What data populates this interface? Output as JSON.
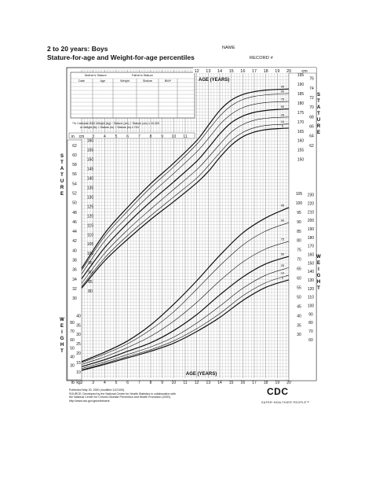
{
  "page": {
    "title_line1": "2 to 20 years: Boys",
    "title_line2": "Stature-for-age and Weight-for-age percentiles",
    "name_label": "NAME",
    "record_label": "RECORD #",
    "footer": [
      "Published May 30, 2000 (modified 11/21/00).",
      "SOURCE: Developed by the National Center for Health Statistics in collaboration with",
      "the National Center for Chronic Disease Prevention and Health Promotion (2000).",
      "http://www.cdc.gov/growthcharts"
    ],
    "logo_text": "CDC",
    "tagline": "SAFER·HEALTHIER·PEOPLE™"
  },
  "form": {
    "columns_top": [
      "Mother's Stature",
      "Father's Stature"
    ],
    "columns": [
      "Date",
      "Age",
      "Weight",
      "Stature",
      "BMI*"
    ],
    "bmi_note_1": "*To Calculate BMI: Weight (kg) ÷ Stature (cm) ÷ Stature (cm) x 10,000",
    "bmi_note_2": "or Weight (lb) ÷ Stature (in) ÷ Stature (in) x 703"
  },
  "chart_data": {
    "type": "line",
    "xlabel": "AGE (YEARS)",
    "x_ticks_top": [
      12,
      13,
      14,
      15,
      16,
      17,
      18,
      19,
      20
    ],
    "x_ticks_bottom": [
      2,
      3,
      4,
      5,
      6,
      7,
      8,
      9,
      10,
      11,
      12,
      13,
      14,
      15,
      16,
      17,
      18,
      19,
      20
    ],
    "x_ticks_inner": [
      3,
      4,
      5,
      6,
      7,
      8,
      9,
      10,
      11
    ],
    "xlim": [
      2,
      20
    ],
    "stature": {
      "label": "STATURE",
      "cm_label": "cm",
      "in_label": "in",
      "cm_ticks": [
        80,
        85,
        90,
        95,
        100,
        105,
        110,
        115,
        120,
        125,
        130,
        135,
        140,
        145,
        150,
        155,
        160,
        165,
        170,
        175,
        180,
        185,
        190
      ],
      "in_ticks_left": [
        30,
        32,
        34,
        36,
        38,
        40,
        42,
        44,
        46,
        48,
        50,
        52,
        54,
        56,
        58,
        60,
        62
      ],
      "in_ticks_right": [
        62,
        64,
        66,
        68,
        70,
        72,
        74,
        76
      ],
      "cm_ticks_right": [
        150,
        155,
        160,
        165,
        170,
        175,
        180,
        185,
        190,
        195
      ],
      "cm_ticks_left_top": [
        150,
        155,
        160
      ],
      "ylim_cm": [
        76,
        197
      ],
      "percentile_labels": [
        "5",
        "10",
        "25",
        "50",
        "75",
        "90",
        "95"
      ],
      "age": [
        2,
        4,
        6,
        8,
        10,
        12,
        13,
        14,
        15,
        16,
        17,
        18,
        19,
        20
      ],
      "series": [
        {
          "name": "95",
          "values": [
            92.0,
            110.6,
            124.5,
            137.0,
            148.0,
            160.0,
            168.0,
            176.0,
            181.5,
            184.5,
            186.0,
            186.8,
            187.2,
            187.4
          ]
        },
        {
          "name": "90",
          "values": [
            91.0,
            109.0,
            122.5,
            135.0,
            146.0,
            158.0,
            165.5,
            173.0,
            178.5,
            181.8,
            183.5,
            184.3,
            184.7,
            185.0
          ]
        },
        {
          "name": "75",
          "values": [
            89.0,
            106.5,
            119.5,
            131.5,
            142.5,
            154.0,
            161.0,
            168.5,
            174.0,
            177.5,
            179.3,
            180.2,
            180.6,
            180.8
          ]
        },
        {
          "name": "50",
          "values": [
            86.5,
            103.0,
            116.0,
            127.5,
            138.0,
            149.0,
            156.0,
            163.5,
            169.5,
            173.0,
            175.0,
            176.0,
            176.5,
            176.8
          ]
        },
        {
          "name": "25",
          "values": [
            84.0,
            100.0,
            112.5,
            123.5,
            134.0,
            144.5,
            151.0,
            158.0,
            164.5,
            168.5,
            170.8,
            171.8,
            172.3,
            172.5
          ]
        },
        {
          "name": "10",
          "values": [
            82.3,
            97.5,
            109.5,
            120.0,
            130.0,
            140.0,
            146.5,
            153.5,
            160.0,
            164.3,
            166.8,
            168.0,
            168.5,
            168.8
          ]
        },
        {
          "name": "5",
          "values": [
            81.5,
            96.0,
            107.5,
            118.0,
            127.5,
            137.5,
            143.5,
            151.0,
            157.5,
            162.0,
            164.5,
            165.8,
            166.3,
            166.6
          ]
        }
      ]
    },
    "weight": {
      "label": "WEIGHT",
      "kg_label": "kg",
      "lb_label": "lb",
      "kg_ticks_left": [
        10,
        15,
        20,
        25,
        30,
        35,
        40
      ],
      "lb_ticks_left": [
        30,
        40,
        50,
        60,
        70,
        80
      ],
      "kg_ticks_right": [
        30,
        35,
        40,
        45,
        50,
        55,
        60,
        65,
        70,
        75,
        80,
        85,
        90,
        95,
        100,
        105
      ],
      "lb_ticks_right": [
        60,
        70,
        80,
        90,
        100,
        110,
        120,
        130,
        140,
        150,
        160,
        170,
        180,
        190,
        200,
        210,
        220,
        230
      ],
      "ylim_kg": [
        8,
        107
      ],
      "percentile_labels": [
        "5",
        "10",
        "25",
        "50",
        "75",
        "90",
        "95"
      ],
      "age": [
        2,
        4,
        6,
        8,
        10,
        12,
        14,
        16,
        18,
        20
      ],
      "series": [
        {
          "name": "95",
          "values": [
            15.5,
            20.5,
            26.5,
            35.0,
            46.0,
            58.5,
            72.0,
            84.0,
            92.0,
            97.5
          ]
        },
        {
          "name": "90",
          "values": [
            15.0,
            19.5,
            25.0,
            32.5,
            42.0,
            54.0,
            66.5,
            77.5,
            85.0,
            89.5
          ]
        },
        {
          "name": "75",
          "values": [
            14.0,
            18.0,
            23.0,
            29.0,
            37.0,
            47.0,
            58.5,
            68.5,
            75.5,
            79.5
          ]
        },
        {
          "name": "50",
          "values": [
            12.8,
            16.5,
            21.0,
            25.5,
            32.0,
            40.5,
            51.0,
            60.5,
            67.5,
            71.5
          ]
        },
        {
          "name": "25",
          "values": [
            11.8,
            15.3,
            19.3,
            23.3,
            28.5,
            36.0,
            45.0,
            54.5,
            61.5,
            65.5
          ]
        },
        {
          "name": "10",
          "values": [
            11.1,
            14.5,
            18.2,
            21.8,
            26.5,
            33.0,
            41.0,
            50.5,
            57.5,
            61.5
          ]
        },
        {
          "name": "5",
          "values": [
            10.8,
            14.0,
            17.5,
            21.0,
            25.3,
            31.5,
            39.0,
            48.0,
            55.0,
            59.0
          ]
        }
      ]
    }
  }
}
